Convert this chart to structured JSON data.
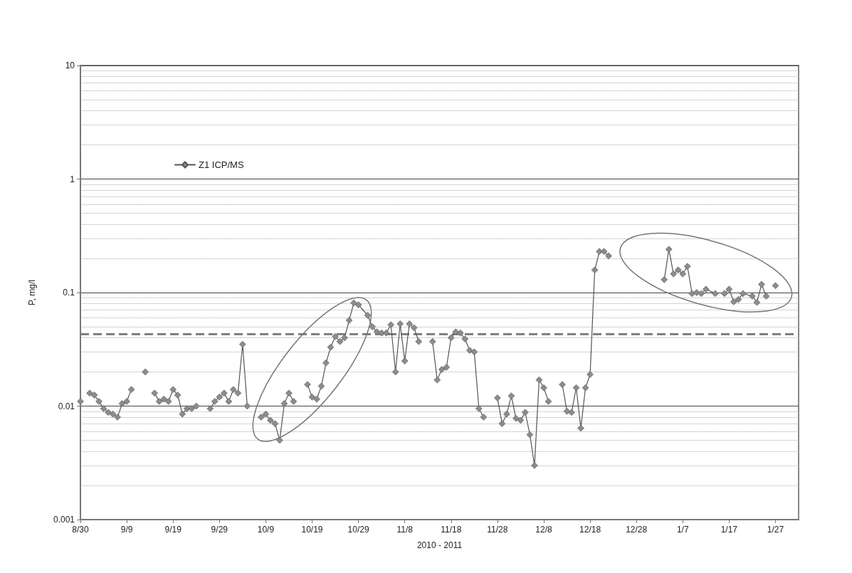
{
  "chart_data": {
    "type": "line",
    "xlabel": "2010 - 2011",
    "ylabel": "P, mg/l",
    "log": "y",
    "grid": "y",
    "legend": "top left",
    "marker": "diamond",
    "line_style": "solid",
    "xlim": [
      "2010-08-30",
      "2011-02-01"
    ],
    "xticks": [
      {
        "value": "2010-08-30",
        "label": "8/30"
      },
      {
        "value": "2010-09-09",
        "label": "9/9"
      },
      {
        "value": "2010-09-19",
        "label": "9/19"
      },
      {
        "value": "2010-09-29",
        "label": "9/29"
      },
      {
        "value": "2010-10-09",
        "label": "10/9"
      },
      {
        "value": "2010-10-19",
        "label": "10/19"
      },
      {
        "value": "2010-10-29",
        "label": "10/29"
      },
      {
        "value": "2010-11-08",
        "label": "11/8"
      },
      {
        "value": "2010-11-18",
        "label": "11/18"
      },
      {
        "value": "2010-11-28",
        "label": "11/28"
      },
      {
        "value": "2010-12-08",
        "label": "12/8"
      },
      {
        "value": "2010-12-18",
        "label": "12/18"
      },
      {
        "value": "2010-12-28",
        "label": "12/28"
      },
      {
        "value": "2011-01-07",
        "label": "1/7"
      },
      {
        "value": "2011-01-17",
        "label": "1/17"
      },
      {
        "value": "2011-01-27",
        "label": "1/27"
      }
    ],
    "ylim": [
      0.001,
      10
    ],
    "yticks": [
      0.001,
      0.01,
      0.1,
      1,
      10
    ],
    "ref_lines": [
      {
        "axis": "y",
        "value": 0.043,
        "color": "#808080",
        "line_style": "dashed"
      }
    ],
    "x": [
      "2010-08-30",
      "2010-08-31",
      "2010-09-01",
      "2010-09-02",
      "2010-09-03",
      "2010-09-04",
      "2010-09-05",
      "2010-09-06",
      "2010-09-07",
      "2010-09-08",
      "2010-09-09",
      "2010-09-10",
      "2010-09-11",
      "2010-09-13",
      "2010-09-14",
      "2010-09-15",
      "2010-09-16",
      "2010-09-17",
      "2010-09-18",
      "2010-09-19",
      "2010-09-20",
      "2010-09-21",
      "2010-09-22",
      "2010-09-23",
      "2010-09-24",
      "2010-09-25",
      "2010-09-27",
      "2010-09-28",
      "2010-09-29",
      "2010-09-30",
      "2010-10-01",
      "2010-10-02",
      "2010-10-03",
      "2010-10-04",
      "2010-10-05",
      "2010-10-06",
      "2010-10-08",
      "2010-10-09",
      "2010-10-10",
      "2010-10-11",
      "2010-10-12",
      "2010-10-13",
      "2010-10-14",
      "2010-10-15",
      "2010-10-16",
      "2010-10-18",
      "2010-10-19",
      "2010-10-20",
      "2010-10-21",
      "2010-10-22",
      "2010-10-23",
      "2010-10-24",
      "2010-10-25",
      "2010-10-26",
      "2010-10-27",
      "2010-10-28",
      "2010-10-29",
      "2010-10-31",
      "2010-11-01",
      "2010-11-02",
      "2010-11-03",
      "2010-11-04",
      "2010-11-05",
      "2010-11-06",
      "2010-11-07",
      "2010-11-08",
      "2010-11-09",
      "2010-11-10",
      "2010-11-11",
      "2010-11-12",
      "2010-11-14",
      "2010-11-15",
      "2010-11-16",
      "2010-11-17",
      "2010-11-18",
      "2010-11-19",
      "2010-11-20",
      "2010-11-21",
      "2010-11-22",
      "2010-11-23",
      "2010-11-24",
      "2010-11-25",
      "2010-11-26",
      "2010-11-28",
      "2010-11-29",
      "2010-11-30",
      "2010-12-01",
      "2010-12-02",
      "2010-12-03",
      "2010-12-04",
      "2010-12-05",
      "2010-12-06",
      "2010-12-07",
      "2010-12-08",
      "2010-12-09",
      "2010-12-10",
      "2010-12-12",
      "2010-12-13",
      "2010-12-14",
      "2010-12-15",
      "2010-12-16",
      "2010-12-17",
      "2010-12-18",
      "2010-12-19",
      "2010-12-20",
      "2010-12-21",
      "2010-12-22",
      "2010-12-23",
      "2011-01-03",
      "2011-01-04",
      "2011-01-05",
      "2011-01-06",
      "2011-01-07",
      "2011-01-08",
      "2011-01-09",
      "2011-01-10",
      "2011-01-11",
      "2011-01-12",
      "2011-01-14",
      "2011-01-15",
      "2011-01-16",
      "2011-01-17",
      "2011-01-18",
      "2011-01-19",
      "2011-01-20",
      "2011-01-22",
      "2011-01-23",
      "2011-01-24",
      "2011-01-25",
      "2011-01-26",
      "2011-01-27"
    ],
    "series": [
      {
        "name": "Z1 ICP/MS",
        "color": "#8c8c8c",
        "values": [
          0.011,
          null,
          0.013,
          0.0125,
          0.011,
          0.0095,
          0.0088,
          0.0085,
          0.008,
          0.0105,
          0.011,
          0.014,
          null,
          0.02,
          null,
          0.013,
          0.011,
          0.0115,
          0.011,
          0.014,
          0.0125,
          0.0085,
          0.0095,
          0.0095,
          0.01,
          null,
          0.0095,
          0.011,
          0.012,
          0.013,
          0.011,
          0.014,
          0.013,
          0.035,
          0.01,
          null,
          0.008,
          0.0085,
          0.0075,
          0.007,
          0.005,
          0.0105,
          0.013,
          0.011,
          null,
          0.0155,
          0.012,
          0.0115,
          0.015,
          0.024,
          0.033,
          0.041,
          0.037,
          0.04,
          0.057,
          0.081,
          0.078,
          0.063,
          0.05,
          0.045,
          0.044,
          0.044,
          0.052,
          0.02,
          0.053,
          0.025,
          0.053,
          0.049,
          0.037,
          null,
          0.037,
          0.017,
          0.021,
          0.022,
          0.04,
          0.045,
          0.044,
          0.039,
          0.031,
          0.03,
          0.0095,
          0.008,
          null,
          0.0118,
          0.007,
          0.0085,
          0.0123,
          0.0078,
          0.0075,
          0.0088,
          0.0056,
          0.003,
          0.017,
          0.0145,
          0.011,
          null,
          0.0155,
          0.009,
          0.0088,
          0.0145,
          0.0064,
          0.0145,
          0.019,
          0.158,
          0.23,
          0.23,
          0.21,
          null,
          0.13,
          0.24,
          0.146,
          0.158,
          0.146,
          0.17,
          0.098,
          0.1,
          0.098,
          0.107,
          0.098,
          null,
          0.098,
          0.107,
          0.083,
          0.087,
          0.098,
          0.093,
          0.082,
          0.118,
          0.093,
          null,
          0.115
        ]
      }
    ]
  }
}
